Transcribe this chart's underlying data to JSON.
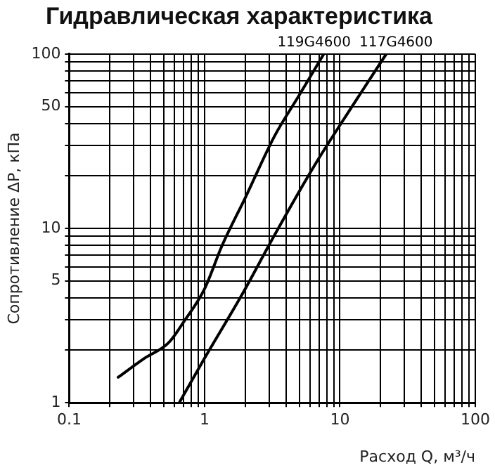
{
  "chart_data": {
    "type": "line",
    "title": "Гидравлическая характеристика",
    "xlabel": "Расход Q, м³/ч",
    "ylabel": "Сопротивление ΔP, кПа",
    "log": "xy",
    "grid": true,
    "legend": false,
    "marker": "none",
    "line_style": "solid",
    "xlim": [
      0.1,
      100
    ],
    "ylim": [
      1,
      100
    ],
    "xticks": [
      0.1,
      {
        "value": 0.2,
        "label": null
      },
      {
        "value": 0.3,
        "label": null
      },
      {
        "value": 0.4,
        "label": null
      },
      {
        "value": 0.5,
        "label": null
      },
      {
        "value": 0.6,
        "label": null
      },
      {
        "value": 0.7,
        "label": null
      },
      {
        "value": 0.8,
        "label": null
      },
      {
        "value": 0.9,
        "label": null
      },
      1,
      {
        "value": 2,
        "label": null
      },
      {
        "value": 3,
        "label": null
      },
      {
        "value": 4,
        "label": null
      },
      {
        "value": 5,
        "label": null
      },
      {
        "value": 6,
        "label": null
      },
      {
        "value": 7,
        "label": null
      },
      {
        "value": 8,
        "label": null
      },
      {
        "value": 9,
        "label": null
      },
      10,
      {
        "value": 20,
        "label": null
      },
      {
        "value": 30,
        "label": null
      },
      {
        "value": 40,
        "label": null
      },
      {
        "value": 50,
        "label": null
      },
      {
        "value": 60,
        "label": null
      },
      {
        "value": 70,
        "label": null
      },
      {
        "value": 80,
        "label": null
      },
      {
        "value": 90,
        "label": null
      },
      100
    ],
    "yticks": [
      1,
      {
        "value": 2,
        "label": null
      },
      {
        "value": 3,
        "label": null
      },
      {
        "value": 4,
        "label": null
      },
      5,
      {
        "value": 6,
        "label": null
      },
      {
        "value": 7,
        "label": null
      },
      {
        "value": 8,
        "label": null
      },
      {
        "value": 9,
        "label": null
      },
      10,
      {
        "value": 20,
        "label": null
      },
      {
        "value": 30,
        "label": null
      },
      {
        "value": 40,
        "label": null
      },
      50,
      {
        "value": 60,
        "label": null
      },
      {
        "value": 70,
        "label": null
      },
      {
        "value": 80,
        "label": null
      },
      {
        "value": 90,
        "label": null
      },
      100
    ],
    "series": [
      {
        "name": "119G4600",
        "color": "#000000",
        "x": [
          0.23,
          0.36,
          0.54,
          0.7,
          1.0,
          1.35,
          2.0,
          3.3,
          5.0,
          7.6
        ],
        "values": [
          1.4,
          1.8,
          2.2,
          2.9,
          4.5,
          8,
          15,
          34,
          58,
          100
        ]
      },
      {
        "name": "117G4600",
        "color": "#000000",
        "x": [
          0.65,
          1.0,
          1.9,
          3.3,
          6.5,
          12.5,
          22
        ],
        "values": [
          1,
          1.8,
          4.2,
          9.2,
          23,
          51,
          100
        ]
      }
    ]
  }
}
